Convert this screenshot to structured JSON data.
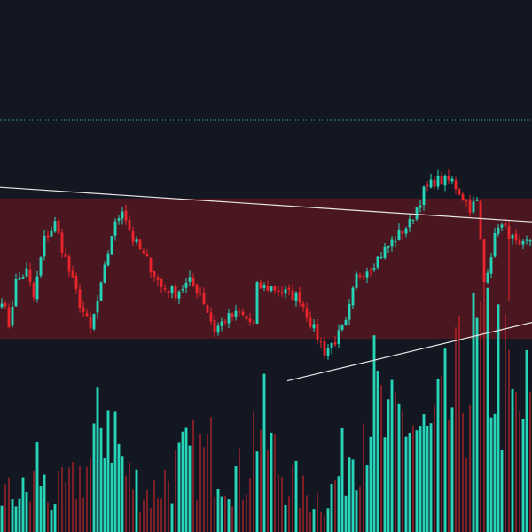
{
  "theme": {
    "background": "#131722",
    "up_color": "#26d4b8",
    "down_color": "#e8252c",
    "zone_fill": "#4a1620",
    "trendline_color": "#e6e6e6",
    "hline_color": "#3fb8c5"
  },
  "chart_data": {
    "type": "candlestick",
    "title": "",
    "xlabel": "",
    "ylabel": "",
    "ylim": [
      0,
      100
    ],
    "volume_ylim": [
      0,
      100
    ],
    "horizontal_level": 77.5,
    "zone": {
      "low": 36.3,
      "high": 62.7
    },
    "trendlines": [
      {
        "name": "upper",
        "from": {
          "bar": 0,
          "price": 64.8
        },
        "to": {
          "bar": 149,
          "price": 58.3
        }
      },
      {
        "name": "lower",
        "from": {
          "bar": 81,
          "price": 28.4
        },
        "to": {
          "bar": 149,
          "price": 39.4
        }
      }
    ],
    "anchors": [
      [
        0,
        44
      ],
      [
        2,
        39
      ],
      [
        4,
        47
      ],
      [
        7,
        49
      ],
      [
        9,
        44
      ],
      [
        12,
        55
      ],
      [
        15,
        58
      ],
      [
        19,
        49
      ],
      [
        22,
        43
      ],
      [
        25,
        38
      ],
      [
        28,
        46
      ],
      [
        31,
        56
      ],
      [
        34,
        61
      ],
      [
        37,
        55
      ],
      [
        41,
        51
      ],
      [
        45,
        46
      ],
      [
        49,
        45
      ],
      [
        53,
        47
      ],
      [
        56,
        45
      ],
      [
        60,
        38
      ],
      [
        63,
        40
      ],
      [
        67,
        41
      ],
      [
        71,
        39
      ],
      [
        72,
        46
      ],
      [
        76,
        46
      ],
      [
        80,
        45
      ],
      [
        84,
        44
      ],
      [
        88,
        38
      ],
      [
        91,
        34
      ],
      [
        94,
        36
      ],
      [
        97,
        39
      ],
      [
        100,
        48
      ],
      [
        104,
        50
      ],
      [
        108,
        53
      ],
      [
        112,
        56
      ],
      [
        115,
        58
      ],
      [
        119,
        64
      ],
      [
        122,
        66
      ],
      [
        127,
        66
      ],
      [
        132,
        61
      ],
      [
        134,
        62
      ],
      [
        136,
        47
      ],
      [
        140,
        58
      ],
      [
        143,
        56
      ],
      [
        146,
        53
      ],
      [
        149,
        55
      ]
    ],
    "volume_anchors": [
      [
        0,
        8
      ],
      [
        8,
        8
      ],
      [
        10,
        15
      ],
      [
        13,
        7
      ],
      [
        20,
        10
      ],
      [
        25,
        15
      ],
      [
        30,
        28
      ],
      [
        35,
        12
      ],
      [
        42,
        8
      ],
      [
        47,
        12
      ],
      [
        52,
        15
      ],
      [
        60,
        17
      ],
      [
        68,
        11
      ],
      [
        72,
        25
      ],
      [
        78,
        14
      ],
      [
        85,
        8
      ],
      [
        92,
        7
      ],
      [
        96,
        14
      ],
      [
        100,
        22
      ],
      [
        104,
        30
      ],
      [
        109,
        20
      ],
      [
        114,
        25
      ],
      [
        120,
        19
      ],
      [
        126,
        26
      ],
      [
        131,
        32
      ],
      [
        136,
        40
      ],
      [
        140,
        36
      ],
      [
        145,
        24
      ],
      [
        149,
        28
      ]
    ]
  }
}
